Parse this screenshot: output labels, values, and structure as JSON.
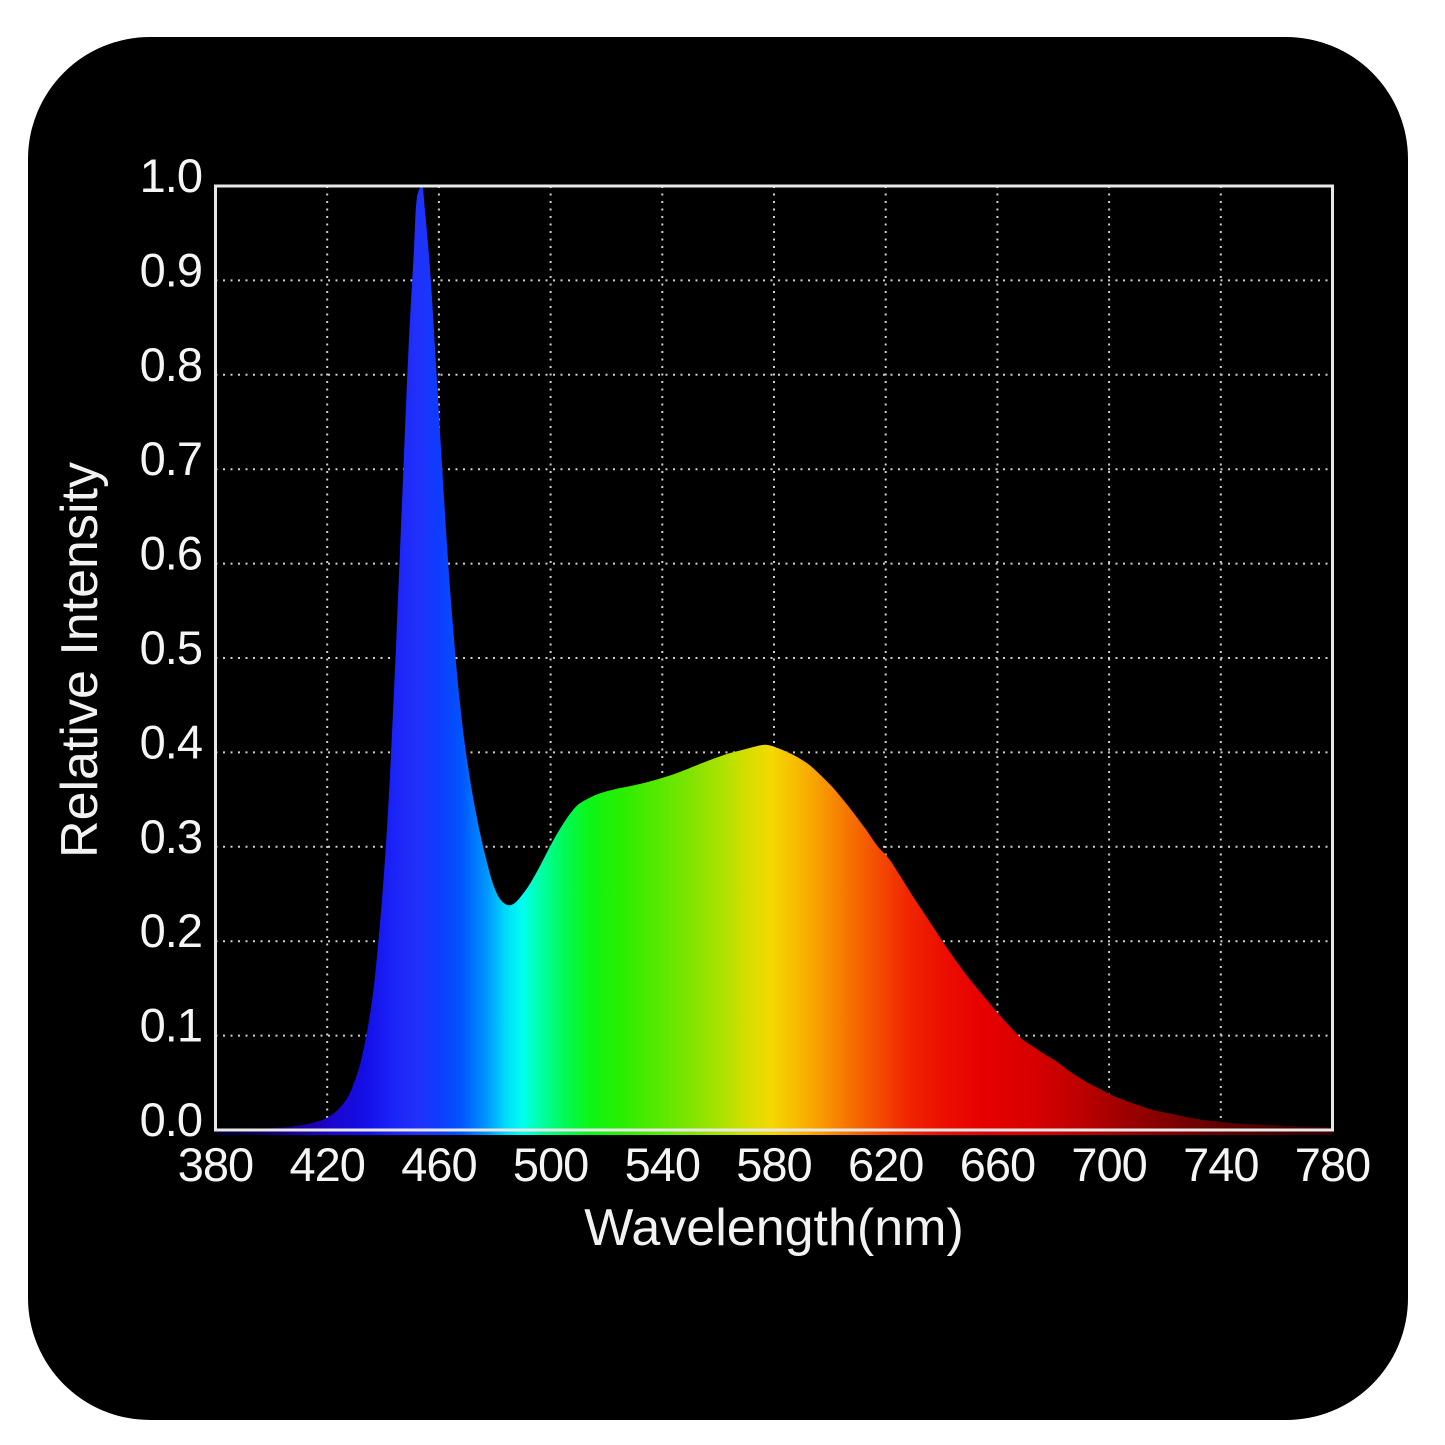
{
  "colors": {
    "page_background": "#ffffff",
    "panel_background": "#000000",
    "axis_frame": "#e8e8e8",
    "grid": "#cfcfcf",
    "tick_label": "#f5f5f5",
    "axis_title": "#f2f2f2"
  },
  "chart_data": {
    "type": "area",
    "title": "",
    "xlabel": "Wavelength(nm)",
    "ylabel": "Relative Intensity",
    "xlim": [
      380,
      780
    ],
    "ylim": [
      0,
      1
    ],
    "grid": "dotted",
    "legend": "none",
    "x_ticks": [
      380,
      420,
      460,
      500,
      540,
      580,
      620,
      660,
      700,
      740,
      780
    ],
    "x_tick_labels": [
      "380",
      "420",
      "460",
      "500",
      "540",
      "580",
      "620",
      "660",
      "700",
      "740",
      "780"
    ],
    "y_ticks": [
      0,
      0.1,
      0.2,
      0.3,
      0.4,
      0.5,
      0.6,
      0.7,
      0.8,
      0.9,
      1.0
    ],
    "y_tick_labels": [
      "0.0",
      "0.1",
      "0.2",
      "0.3",
      "0.4",
      "0.5",
      "0.6",
      "0.7",
      "0.8",
      "0.9",
      "1.0"
    ],
    "series": [
      {
        "name": "spectrum",
        "x": [
          380,
          390,
          400,
          408,
          414,
          420,
          425,
          429,
          433,
          437,
          441,
          444,
          447,
          449,
          451,
          452,
          454,
          455,
          457,
          459,
          461,
          463,
          465,
          467,
          469,
          471,
          473,
          475,
          477,
          479,
          481,
          483,
          485,
          487,
          489,
          492,
          495,
          498,
          501,
          504,
          507,
          510,
          514,
          518,
          523,
          528,
          534,
          540,
          546,
          552,
          558,
          564,
          569,
          573,
          577,
          581,
          585,
          589,
          593,
          597,
          601,
          605,
          609,
          613,
          617,
          621,
          625,
          629,
          633,
          637,
          641,
          645,
          649,
          653,
          657,
          661,
          665,
          669,
          673,
          677,
          681,
          685,
          689,
          693,
          697,
          701,
          706,
          711,
          716,
          721,
          727,
          733,
          739,
          745,
          752,
          759,
          766,
          773,
          780
        ],
        "y": [
          0.0,
          0.001,
          0.002,
          0.004,
          0.007,
          0.013,
          0.025,
          0.045,
          0.085,
          0.16,
          0.3,
          0.47,
          0.68,
          0.82,
          0.93,
          0.985,
          1.0,
          0.975,
          0.905,
          0.81,
          0.71,
          0.615,
          0.535,
          0.468,
          0.415,
          0.374,
          0.34,
          0.311,
          0.286,
          0.264,
          0.249,
          0.241,
          0.238,
          0.24,
          0.246,
          0.258,
          0.273,
          0.29,
          0.307,
          0.322,
          0.335,
          0.345,
          0.352,
          0.357,
          0.361,
          0.364,
          0.368,
          0.373,
          0.379,
          0.386,
          0.393,
          0.399,
          0.403,
          0.406,
          0.408,
          0.405,
          0.4,
          0.394,
          0.386,
          0.375,
          0.363,
          0.349,
          0.334,
          0.318,
          0.301,
          0.288,
          0.27,
          0.251,
          0.233,
          0.215,
          0.197,
          0.18,
          0.164,
          0.149,
          0.135,
          0.121,
          0.108,
          0.096,
          0.088,
          0.08,
          0.073,
          0.064,
          0.056,
          0.049,
          0.043,
          0.037,
          0.031,
          0.026,
          0.021,
          0.018,
          0.014,
          0.011,
          0.009,
          0.007,
          0.006,
          0.005,
          0.004,
          0.0035,
          0.003
        ]
      }
    ],
    "fill": "spectral-gradient",
    "spectrum_gradient": [
      {
        "nm": 380,
        "color": "#000028"
      },
      {
        "nm": 398,
        "color": "#0c0060"
      },
      {
        "nm": 410,
        "color": "#1800a0"
      },
      {
        "nm": 422,
        "color": "#1a06cf"
      },
      {
        "nm": 434,
        "color": "#140fe8"
      },
      {
        "nm": 444,
        "color": "#1b24f8"
      },
      {
        "nm": 452,
        "color": "#2130fa"
      },
      {
        "nm": 460,
        "color": "#0f3cff"
      },
      {
        "nm": 468,
        "color": "#0055ff"
      },
      {
        "nm": 477,
        "color": "#0096ff"
      },
      {
        "nm": 484,
        "color": "#00dcf8"
      },
      {
        "nm": 490,
        "color": "#00fff0"
      },
      {
        "nm": 497,
        "color": "#00ffa0"
      },
      {
        "nm": 505,
        "color": "#00fa55"
      },
      {
        "nm": 514,
        "color": "#0cf516"
      },
      {
        "nm": 526,
        "color": "#2bee00"
      },
      {
        "nm": 538,
        "color": "#55e900"
      },
      {
        "nm": 550,
        "color": "#7fe400"
      },
      {
        "nm": 561,
        "color": "#abe200"
      },
      {
        "nm": 571,
        "color": "#d8de00"
      },
      {
        "nm": 579,
        "color": "#f4d800"
      },
      {
        "nm": 588,
        "color": "#f8bb00"
      },
      {
        "nm": 598,
        "color": "#f89600"
      },
      {
        "nm": 608,
        "color": "#f66e00"
      },
      {
        "nm": 618,
        "color": "#f44900"
      },
      {
        "nm": 628,
        "color": "#f02600"
      },
      {
        "nm": 640,
        "color": "#ec0f00"
      },
      {
        "nm": 655,
        "color": "#e60000"
      },
      {
        "nm": 672,
        "color": "#d80000"
      },
      {
        "nm": 690,
        "color": "#bc0000"
      },
      {
        "nm": 710,
        "color": "#950000"
      },
      {
        "nm": 735,
        "color": "#680000"
      },
      {
        "nm": 760,
        "color": "#470000"
      },
      {
        "nm": 780,
        "color": "#320000"
      }
    ]
  }
}
